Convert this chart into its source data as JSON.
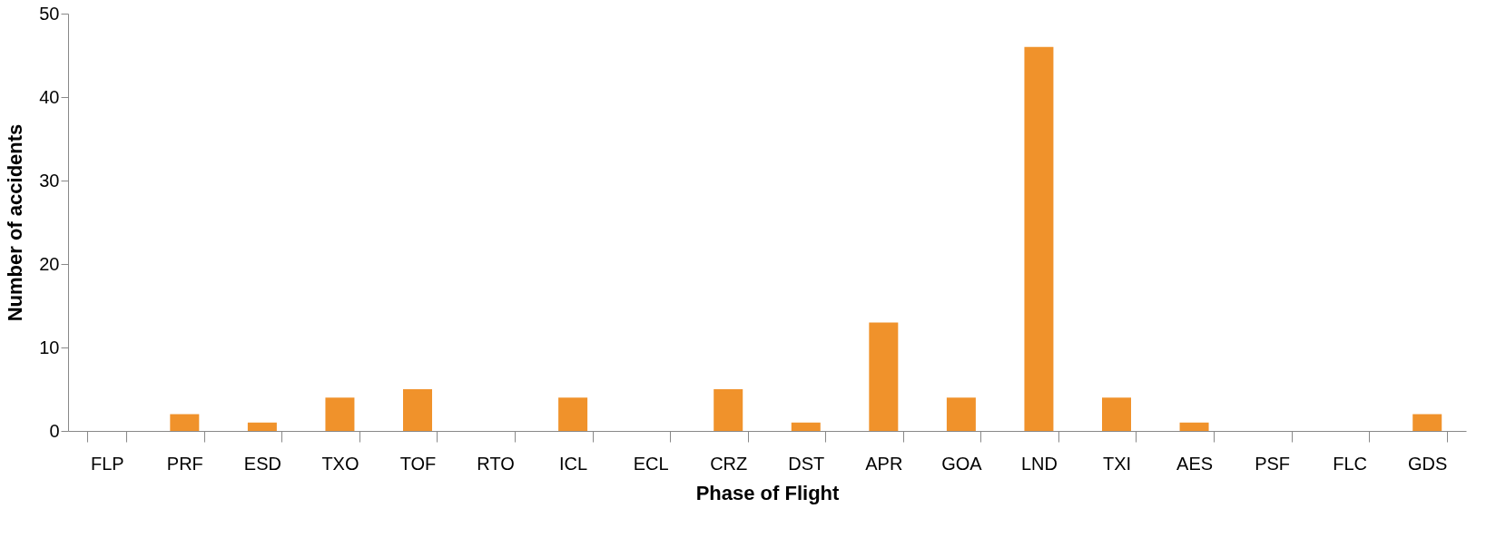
{
  "chart_data": {
    "type": "bar",
    "xlabel": "Phase of Flight",
    "ylabel": "Number of accidents",
    "categories": [
      "FLP",
      "PRF",
      "ESD",
      "TXO",
      "TOF",
      "RTO",
      "ICL",
      "ECL",
      "CRZ",
      "DST",
      "APR",
      "GOA",
      "LND",
      "TXI",
      "AES",
      "PSF",
      "FLC",
      "GDS"
    ],
    "values": [
      0,
      2,
      1,
      4,
      5,
      0,
      4,
      0,
      5,
      1,
      13,
      4,
      46,
      4,
      1,
      0,
      0,
      2
    ],
    "color": "#f0922b",
    "ylim": [
      0,
      50
    ],
    "yticks": [
      0,
      10,
      20,
      30,
      40,
      50
    ],
    "grid": false
  }
}
